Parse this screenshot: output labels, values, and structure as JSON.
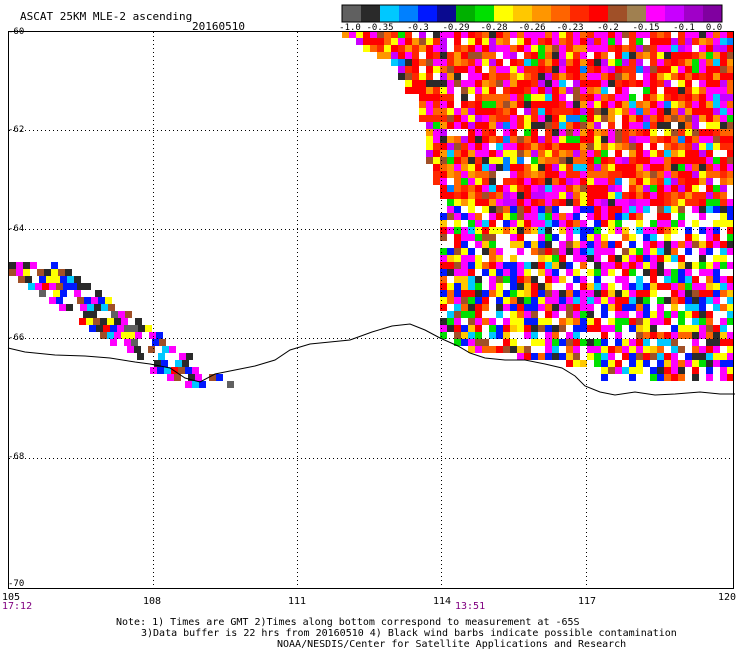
{
  "header": {
    "title": "ASCAT 25KM MLE-2 ascending",
    "date": "20160510"
  },
  "colorbar": {
    "colors": [
      "#606060",
      "#2a2a2a",
      "#00c8ff",
      "#0080ff",
      "#0018ff",
      "#0a0a90",
      "#00b000",
      "#00e000",
      "#ffff00",
      "#ffc800",
      "#ff9600",
      "#ff6400",
      "#ff2800",
      "#ff0000",
      "#a05028",
      "#a08050",
      "#ff00ff",
      "#c800ff",
      "#a000c8",
      "#8000a0"
    ],
    "tick_labels": [
      "-1.0",
      "-0.35",
      "-0.3",
      "-0.29",
      "-0.28",
      "-0.26",
      "-0.23",
      "-0.2",
      "-0.15",
      "-0.1",
      "0.0"
    ]
  },
  "map": {
    "lat_labels": [
      "-60",
      "-62",
      "-64",
      "-66",
      "-68",
      "-70"
    ],
    "lon_labels": [
      "105",
      "108",
      "111",
      "114",
      "117",
      "120"
    ],
    "time_labels": [
      "17:12",
      "13:51"
    ]
  },
  "notes": [
    "Note: 1) Times are GMT 2)Times along bottom correspond to measurement at -65S",
    "3)Data buffer is 22 hrs from 20160510 4) Black wind barbs indicate possible contamination",
    "NOAA/NESDIS/Center for Satellite Applications and Research"
  ]
}
